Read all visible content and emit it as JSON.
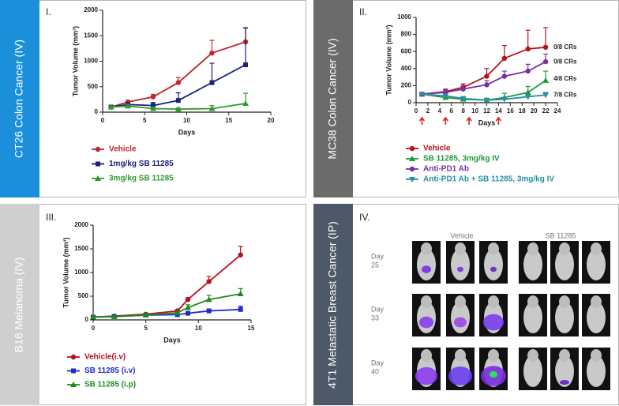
{
  "chart_data": [
    {
      "type": "line",
      "panel_label": "I.",
      "side_label": "CT26 Colon Cancer (IV)",
      "x_label": "Days",
      "y_label": "Tumor Volume (mm³)",
      "x": [
        1,
        3,
        6,
        9,
        13,
        17
      ],
      "xlim": [
        0,
        20
      ],
      "xticks": [
        0,
        5,
        10,
        15,
        20
      ],
      "ylim": [
        0,
        2000
      ],
      "yticks": [
        0,
        500,
        1000,
        1500,
        2000
      ],
      "series": [
        {
          "name": "Vehicle",
          "color": "#c0272d",
          "marker": "circle",
          "values": [
            100,
            200,
            300,
            580,
            1160,
            1380
          ],
          "errors": [
            20,
            30,
            50,
            100,
            250,
            280
          ]
        },
        {
          "name": "1mg/kg SB 11285",
          "color": "#1a1f80",
          "marker": "square",
          "values": [
            100,
            150,
            130,
            230,
            580,
            930
          ],
          "errors": [
            20,
            30,
            60,
            150,
            380,
            720
          ]
        },
        {
          "name": "3mg/kg SB 11285",
          "color": "#2e9a2e",
          "marker": "triangle",
          "values": [
            100,
            120,
            70,
            60,
            70,
            170
          ],
          "errors": [
            15,
            30,
            30,
            20,
            60,
            200
          ]
        }
      ]
    },
    {
      "type": "line",
      "panel_label": "II.",
      "side_label": "MC38 Colon Cancer (IV)",
      "x_label": "Days",
      "y_label": "Tumor Volume (mm³)",
      "x": [
        1,
        5,
        8,
        12,
        15,
        19,
        22
      ],
      "xlim": [
        0,
        24
      ],
      "xticks": [
        0,
        2,
        4,
        6,
        8,
        10,
        12,
        14,
        16,
        18,
        20,
        22,
        24
      ],
      "ylim": [
        0,
        1000
      ],
      "yticks": [
        0,
        200,
        400,
        600,
        800,
        1000
      ],
      "dose_days": [
        1,
        5,
        9,
        14
      ],
      "series": [
        {
          "name": "Vehicle",
          "color": "#b5121b",
          "marker": "circle",
          "end_label": "0/8 CRs",
          "values": [
            100,
            130,
            180,
            310,
            520,
            630,
            650
          ],
          "errors": [
            10,
            30,
            40,
            90,
            150,
            220,
            230
          ]
        },
        {
          "name": "SB 11285, 3mg/kg IV",
          "color": "#1e9a3c",
          "marker": "triangle",
          "end_label": "4/8 CRs",
          "values": [
            100,
            60,
            40,
            30,
            60,
            120,
            260
          ],
          "errors": [
            10,
            20,
            20,
            20,
            50,
            70,
            110
          ]
        },
        {
          "name": "Anti-PD1 Ab",
          "color": "#7b2ea5",
          "marker": "circle",
          "end_label": "0/8 CRs",
          "values": [
            100,
            120,
            160,
            210,
            310,
            370,
            480
          ],
          "errors": [
            10,
            30,
            40,
            50,
            60,
            80,
            90
          ]
        },
        {
          "name": "Anti-PD1 Ab + SB 11285, 3mg/kg IV",
          "color": "#2a8fa3",
          "marker": "triangle-down",
          "end_label": "7/8 CRs",
          "values": [
            100,
            80,
            50,
            30,
            40,
            70,
            90
          ],
          "errors": [
            10,
            20,
            20,
            10,
            20,
            20,
            30
          ]
        }
      ]
    },
    {
      "type": "line",
      "panel_label": "III.",
      "side_label": "B16 Melanoma (IV)",
      "x_label": "Days",
      "y_label": "Tumor Volume (mm³)",
      "x": [
        0,
        2,
        5,
        8,
        9,
        11,
        14
      ],
      "xlim": [
        0,
        15
      ],
      "xticks": [
        0,
        5,
        10,
        15
      ],
      "ylim": [
        0,
        2000
      ],
      "yticks": [
        0,
        500,
        1000,
        1500,
        2000
      ],
      "series": [
        {
          "name": "Vehicle(i.v)",
          "color": "#b5121b",
          "marker": "circle",
          "values": [
            60,
            80,
            120,
            190,
            430,
            810,
            1370
          ],
          "errors": [
            10,
            10,
            20,
            30,
            40,
            110,
            180
          ]
        },
        {
          "name": "SB 11285 (i.v)",
          "color": "#1f2ad0",
          "marker": "square",
          "values": [
            60,
            70,
            100,
            110,
            140,
            190,
            220
          ],
          "errors": [
            10,
            10,
            15,
            20,
            30,
            40,
            70
          ]
        },
        {
          "name": "SB 11285 (i.p)",
          "color": "#1e8a1e",
          "marker": "triangle",
          "values": [
            60,
            70,
            100,
            150,
            260,
            430,
            550
          ],
          "errors": [
            10,
            10,
            15,
            30,
            60,
            90,
            110
          ]
        }
      ]
    }
  ],
  "imaging_panel": {
    "panel_label": "IV.",
    "side_label": "4T1 Metastatic Breast Cancer (IP)",
    "groups": [
      "Vehicle",
      "SB 11285"
    ],
    "rows": [
      {
        "label": "Day",
        "day": "25"
      },
      {
        "label": "Day",
        "day": "33"
      },
      {
        "label": "Day",
        "day": "40"
      }
    ]
  }
}
